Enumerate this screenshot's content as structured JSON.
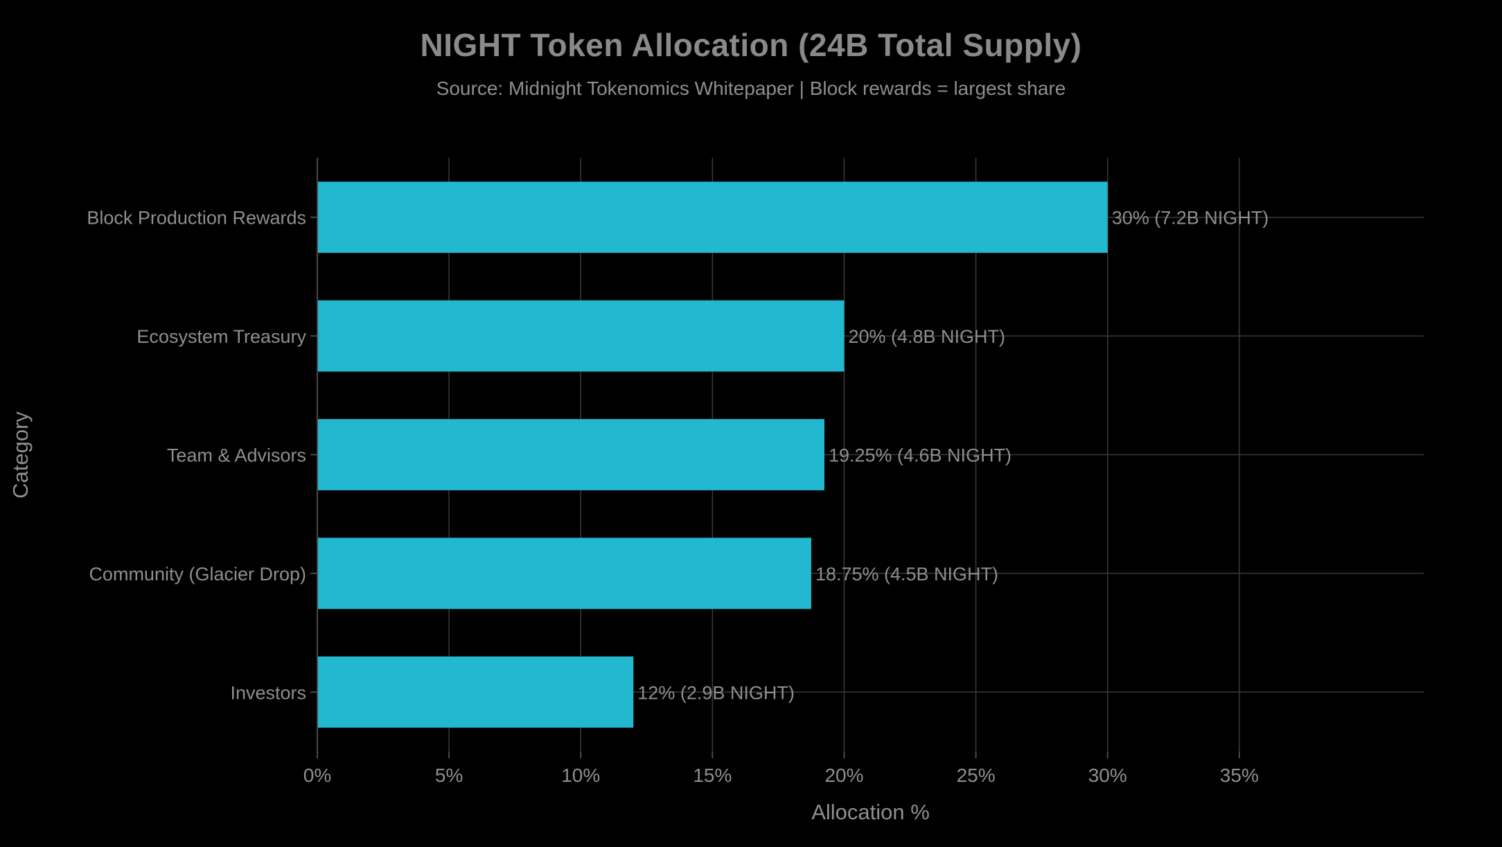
{
  "chart_data": {
    "type": "bar",
    "orientation": "horizontal",
    "title": "NIGHT Token Allocation (24B Total Supply)",
    "subtitle": "Source: Midnight Tokenomics Whitepaper | Block rewards = largest share",
    "xlabel": "Allocation %",
    "ylabel": "Category",
    "xlim": [
      0,
      42
    ],
    "xticks": [
      0,
      5,
      10,
      15,
      20,
      25,
      30,
      35
    ],
    "xtick_labels": [
      "0%",
      "5%",
      "10%",
      "15%",
      "20%",
      "25%",
      "30%",
      "35%"
    ],
    "categories": [
      "Block Production Rewards",
      "Ecosystem Treasury",
      "Team & Advisors",
      "Community (Glacier Drop)",
      "Investors"
    ],
    "values": [
      30,
      20,
      19.25,
      18.75,
      12
    ],
    "data_labels": [
      "30%  (7.2B NIGHT)",
      "20%  (4.8B NIGHT)",
      "19.25%  (4.6B NIGHT)",
      "18.75%  (4.5B NIGHT)",
      "12%  (2.9B NIGHT)"
    ],
    "grid": true,
    "colors": {
      "bar": "#22b8cf",
      "background": "#000000",
      "text": "#8f8f8f",
      "grid": "#3a3a3a"
    }
  }
}
